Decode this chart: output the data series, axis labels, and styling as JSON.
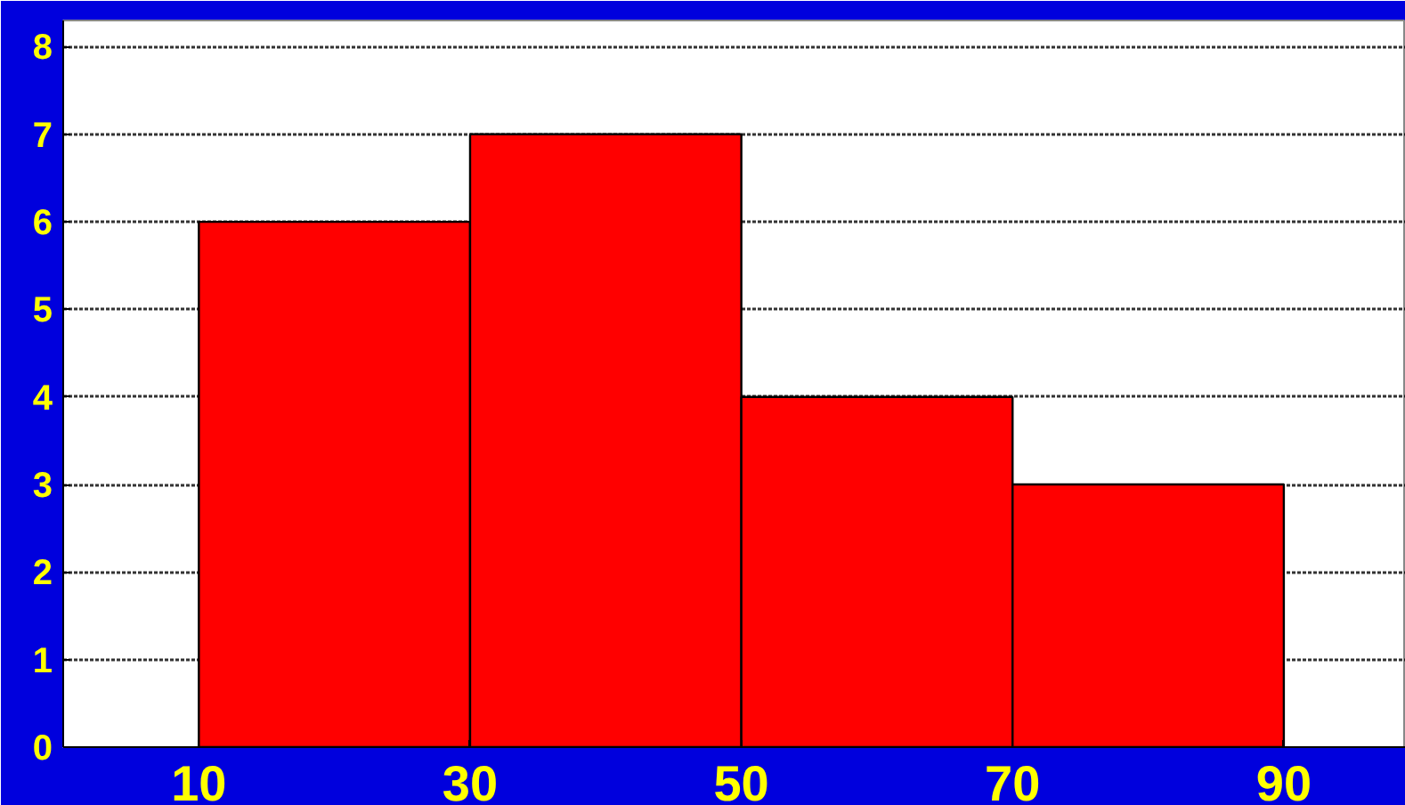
{
  "chart_data": {
    "type": "histogram",
    "bins": [
      10,
      30,
      50,
      70,
      90
    ],
    "values": [
      6,
      7,
      4,
      3
    ],
    "color": "#ff0000",
    "xlim": [
      0,
      99
    ],
    "xticks": [
      10,
      30,
      50,
      70,
      90
    ],
    "ylim": [
      0,
      8.3
    ],
    "yticks": [
      0,
      1,
      2,
      3,
      4,
      5,
      6,
      7,
      8
    ],
    "grid": "y"
  }
}
